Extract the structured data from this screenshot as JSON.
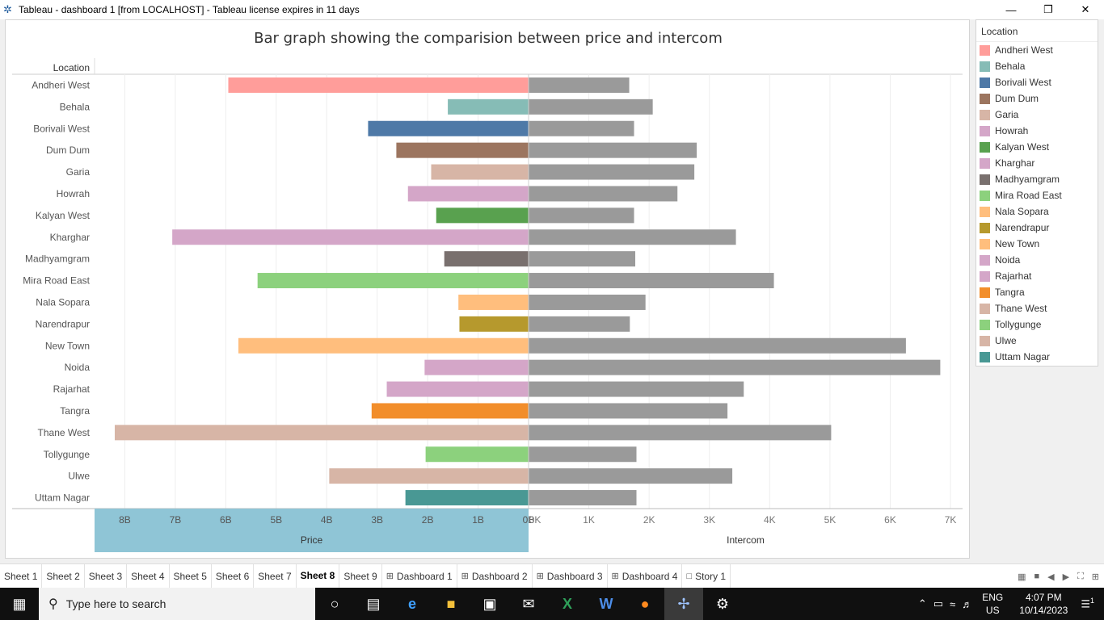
{
  "window": {
    "title": "Tableau - dashboard 1 [from LOCALHOST] - Tableau license expires in 11 days",
    "minimize_icon": "minimize-icon",
    "maximize_icon": "restore-icon",
    "close_icon": "close-icon"
  },
  "chart_title": "Bar graph showing the comparision between price and intercom",
  "row_header": "Location",
  "chart_data": {
    "type": "bar",
    "categories": [
      "Andheri West",
      "Behala",
      "Borivali West",
      "Dum Dum",
      "Garia",
      "Howrah",
      "Kalyan West",
      "Kharghar",
      "Madhyamgram",
      "Mira Road East",
      "Nala Sopara",
      "Narendrapur",
      "New Town",
      "Noida",
      "Rajarhat",
      "Tangra",
      "Thane West",
      "Tollygunge",
      "Ulwe",
      "Uttam Nagar"
    ],
    "series": [
      {
        "name": "Price",
        "values": [
          5.95,
          1.6,
          3.18,
          2.62,
          1.93,
          2.39,
          1.83,
          7.06,
          1.67,
          5.37,
          1.39,
          1.37,
          5.75,
          2.06,
          2.81,
          3.11,
          8.2,
          2.04,
          3.95,
          2.44
        ]
      },
      {
        "name": "Intercom",
        "values": [
          1670,
          2060,
          1750,
          2790,
          2750,
          2470,
          1750,
          3440,
          1770,
          4070,
          1940,
          1680,
          6260,
          6830,
          3570,
          3300,
          5020,
          1790,
          3380,
          1790
        ]
      }
    ],
    "x_axes": [
      {
        "label": "Price",
        "ticks": [
          "8B",
          "7B",
          "6B",
          "5B",
          "4B",
          "3B",
          "2B",
          "1B",
          "0B"
        ],
        "range": [
          0,
          8.6
        ],
        "reversed": true
      },
      {
        "label": "Intercom",
        "ticks": [
          "0K",
          "1K",
          "2K",
          "3K",
          "4K",
          "5K",
          "6K",
          "7K"
        ],
        "range": [
          0,
          7200
        ]
      }
    ],
    "intercom_color": "#9a9a9a",
    "grid": true
  },
  "legend": {
    "title": "Location",
    "items": [
      {
        "label": "Andheri West",
        "color": "#ff9d9a"
      },
      {
        "label": "Behala",
        "color": "#86bcb6"
      },
      {
        "label": "Borivali West",
        "color": "#4e79a7"
      },
      {
        "label": "Dum Dum",
        "color": "#9c755f"
      },
      {
        "label": "Garia",
        "color": "#d7b5a6"
      },
      {
        "label": "Howrah",
        "color": "#d4a6c8"
      },
      {
        "label": "Kalyan West",
        "color": "#59a14f"
      },
      {
        "label": "Kharghar",
        "color": "#d4a6c8"
      },
      {
        "label": "Madhyamgram",
        "color": "#79706e"
      },
      {
        "label": "Mira Road East",
        "color": "#8cd17d"
      },
      {
        "label": "Nala Sopara",
        "color": "#ffbe7d"
      },
      {
        "label": "Narendrapur",
        "color": "#b6992d"
      },
      {
        "label": "New Town",
        "color": "#ffbe7d"
      },
      {
        "label": "Noida",
        "color": "#d4a6c8"
      },
      {
        "label": "Rajarhat",
        "color": "#d4a6c8"
      },
      {
        "label": "Tangra",
        "color": "#f28e2b"
      },
      {
        "label": "Thane West",
        "color": "#d7b5a6"
      },
      {
        "label": "Tollygunge",
        "color": "#8cd17d"
      },
      {
        "label": "Ulwe",
        "color": "#d7b5a6"
      },
      {
        "label": "Uttam Nagar",
        "color": "#499894"
      }
    ]
  },
  "tabs": [
    {
      "label": "Sheet 1",
      "type": "sheet"
    },
    {
      "label": "Sheet 2",
      "type": "sheet"
    },
    {
      "label": "Sheet 3",
      "type": "sheet"
    },
    {
      "label": "Sheet 4",
      "type": "sheet"
    },
    {
      "label": "Sheet 5",
      "type": "sheet"
    },
    {
      "label": "Sheet 6",
      "type": "sheet"
    },
    {
      "label": "Sheet 7",
      "type": "sheet"
    },
    {
      "label": "Sheet 8",
      "type": "sheet",
      "active": true
    },
    {
      "label": "Sheet 9",
      "type": "sheet"
    },
    {
      "label": "Dashboard 1",
      "type": "dashboard"
    },
    {
      "label": "Dashboard 2",
      "type": "dashboard"
    },
    {
      "label": "Dashboard 3",
      "type": "dashboard"
    },
    {
      "label": "Dashboard 4",
      "type": "dashboard"
    },
    {
      "label": "Story 1",
      "type": "story"
    }
  ],
  "taskbar": {
    "search_placeholder": "Type here to search",
    "lang_top": "ENG",
    "lang_bottom": "US",
    "time": "4:07 PM",
    "date": "10/14/2023",
    "notification_count": "1"
  }
}
